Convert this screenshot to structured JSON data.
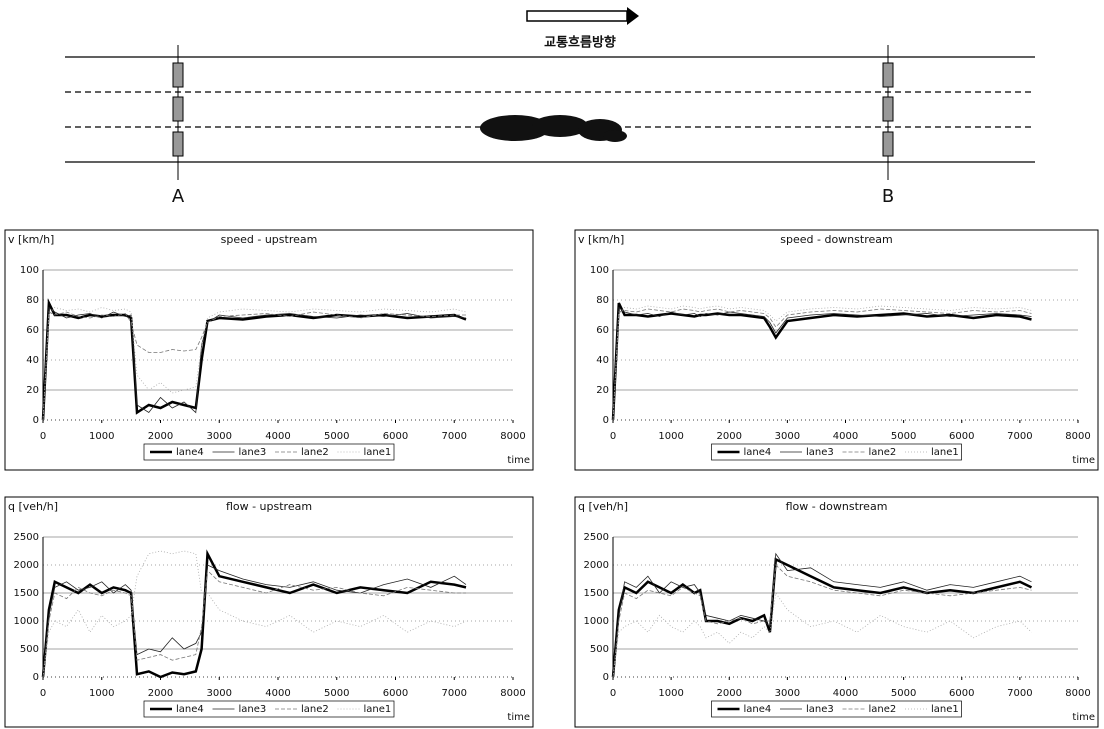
{
  "diagram": {
    "direction": "교통흐름방향",
    "detector_a": "A",
    "detector_b": "B"
  },
  "chart_data": [
    {
      "type": "line",
      "title": "speed - upstream",
      "ylabel": "v [km/h]",
      "xlabel": "time",
      "grid": true,
      "legend": "bottom",
      "x": [
        0,
        100,
        200,
        400,
        600,
        800,
        1000,
        1200,
        1400,
        1500,
        1600,
        1800,
        2000,
        2200,
        2400,
        2600,
        2700,
        2800,
        3000,
        3400,
        3800,
        4200,
        4600,
        5000,
        5400,
        5800,
        6200,
        6600,
        7000,
        7200
      ],
      "xlim": [
        0,
        8000
      ],
      "xticks": [
        0,
        1000,
        2000,
        3000,
        4000,
        5000,
        6000,
        7000,
        8000
      ],
      "ylim": [
        0,
        100
      ],
      "yticks": [
        0,
        20,
        40,
        60,
        80,
        100
      ],
      "series": [
        {
          "name": "lane4",
          "color": "#000000",
          "linewidth": 2.5,
          "values": [
            0,
            78,
            70,
            70,
            68,
            70,
            69,
            70,
            70,
            68,
            5,
            10,
            8,
            12,
            10,
            8,
            40,
            66,
            68,
            67,
            69,
            70,
            68,
            70,
            69,
            70,
            68,
            69,
            70,
            67
          ]
        },
        {
          "name": "lane3",
          "color": "#222222",
          "linewidth": 0.8,
          "values": [
            0,
            75,
            72,
            68,
            70,
            71,
            68,
            72,
            69,
            70,
            10,
            5,
            15,
            8,
            12,
            5,
            50,
            65,
            70,
            68,
            70,
            71,
            69,
            68,
            70,
            69,
            71,
            68,
            69,
            68
          ]
        },
        {
          "name": "lane2",
          "color": "#777777",
          "linewidth": 0.8,
          "values": [
            0,
            72,
            70,
            72,
            69,
            68,
            70,
            69,
            71,
            65,
            50,
            45,
            45,
            47,
            46,
            47,
            55,
            65,
            69,
            70,
            71,
            69,
            72,
            70,
            68,
            71,
            70,
            69,
            70,
            70
          ]
        },
        {
          "name": "lane1",
          "color": "#aaaaaa",
          "linewidth": 0.8,
          "values": [
            0,
            70,
            75,
            73,
            74,
            72,
            75,
            73,
            74,
            72,
            30,
            20,
            25,
            18,
            20,
            22,
            50,
            68,
            72,
            74,
            73,
            72,
            74,
            73,
            72,
            74,
            73,
            72,
            74,
            72
          ]
        }
      ]
    },
    {
      "type": "line",
      "title": "speed - downstream",
      "ylabel": "v [km/h]",
      "xlabel": "time",
      "grid": true,
      "legend": "bottom",
      "x": [
        0,
        100,
        200,
        400,
        600,
        800,
        1000,
        1200,
        1400,
        1500,
        1600,
        1800,
        2000,
        2200,
        2400,
        2600,
        2700,
        2800,
        3000,
        3400,
        3800,
        4200,
        4600,
        5000,
        5400,
        5800,
        6200,
        6600,
        7000,
        7200
      ],
      "xlim": [
        0,
        8000
      ],
      "xticks": [
        0,
        1000,
        2000,
        3000,
        4000,
        5000,
        6000,
        7000,
        8000
      ],
      "ylim": [
        0,
        100
      ],
      "yticks": [
        0,
        20,
        40,
        60,
        80,
        100
      ],
      "series": [
        {
          "name": "lane4",
          "color": "#000000",
          "linewidth": 2.5,
          "values": [
            0,
            78,
            70,
            70,
            69,
            70,
            71,
            70,
            69,
            70,
            70,
            71,
            70,
            70,
            69,
            68,
            62,
            55,
            66,
            68,
            70,
            69,
            70,
            71,
            69,
            70,
            68,
            70,
            69,
            67
          ]
        },
        {
          "name": "lane3",
          "color": "#222222",
          "linewidth": 0.8,
          "values": [
            0,
            75,
            72,
            70,
            71,
            69,
            72,
            70,
            71,
            69,
            71,
            70,
            72,
            71,
            70,
            69,
            65,
            58,
            68,
            70,
            71,
            70,
            69,
            70,
            71,
            69,
            70,
            71,
            70,
            69
          ]
        },
        {
          "name": "lane2",
          "color": "#777777",
          "linewidth": 0.8,
          "values": [
            0,
            72,
            73,
            72,
            74,
            73,
            72,
            74,
            73,
            72,
            73,
            74,
            72,
            73,
            72,
            71,
            68,
            62,
            70,
            72,
            73,
            72,
            74,
            73,
            72,
            71,
            73,
            72,
            73,
            71
          ]
        },
        {
          "name": "lane1",
          "color": "#aaaaaa",
          "linewidth": 0.8,
          "values": [
            0,
            70,
            75,
            74,
            76,
            75,
            74,
            76,
            75,
            74,
            75,
            76,
            74,
            75,
            74,
            73,
            70,
            66,
            72,
            74,
            75,
            74,
            76,
            75,
            74,
            73,
            75,
            74,
            75,
            73
          ]
        }
      ]
    },
    {
      "type": "line",
      "title": "flow - upstream",
      "ylabel": "q [veh/h]",
      "xlabel": "time",
      "grid": true,
      "legend": "bottom",
      "x": [
        0,
        100,
        200,
        400,
        600,
        800,
        1000,
        1200,
        1400,
        1500,
        1600,
        1800,
        2000,
        2200,
        2400,
        2600,
        2700,
        2800,
        3000,
        3400,
        3800,
        4200,
        4600,
        5000,
        5400,
        5800,
        6200,
        6600,
        7000,
        7200
      ],
      "xlim": [
        0,
        8000
      ],
      "xticks": [
        0,
        1000,
        2000,
        3000,
        4000,
        5000,
        6000,
        7000,
        8000
      ],
      "ylim": [
        0,
        2500
      ],
      "yticks": [
        0,
        500,
        1000,
        1500,
        2000,
        2500
      ],
      "series": [
        {
          "name": "lane4",
          "color": "#000000",
          "linewidth": 2.5,
          "values": [
            0,
            1200,
            1700,
            1600,
            1500,
            1650,
            1500,
            1600,
            1550,
            1500,
            50,
            100,
            0,
            80,
            50,
            100,
            500,
            2200,
            1800,
            1700,
            1600,
            1500,
            1650,
            1500,
            1600,
            1550,
            1500,
            1700,
            1650,
            1600
          ]
        },
        {
          "name": "lane3",
          "color": "#222222",
          "linewidth": 0.8,
          "values": [
            0,
            1100,
            1600,
            1700,
            1550,
            1600,
            1700,
            1500,
            1650,
            1550,
            400,
            500,
            450,
            700,
            500,
            600,
            800,
            2000,
            1900,
            1750,
            1650,
            1600,
            1700,
            1550,
            1500,
            1650,
            1750,
            1600,
            1800,
            1650
          ]
        },
        {
          "name": "lane2",
          "color": "#777777",
          "linewidth": 0.8,
          "values": [
            0,
            1000,
            1500,
            1400,
            1600,
            1500,
            1450,
            1550,
            1500,
            1450,
            300,
            350,
            400,
            300,
            350,
            400,
            900,
            1900,
            1700,
            1600,
            1500,
            1650,
            1550,
            1600,
            1500,
            1450,
            1600,
            1550,
            1500,
            1500
          ]
        },
        {
          "name": "lane1",
          "color": "#aaaaaa",
          "linewidth": 0.8,
          "values": [
            0,
            800,
            1000,
            900,
            1200,
            800,
            1100,
            900,
            1000,
            1100,
            1800,
            2200,
            2250,
            2200,
            2250,
            2200,
            1500,
            1500,
            1200,
            1000,
            900,
            1100,
            800,
            1000,
            900,
            1100,
            800,
            1000,
            900,
            1000
          ]
        }
      ]
    },
    {
      "type": "line",
      "title": "flow - downstream",
      "ylabel": "q [veh/h]",
      "xlabel": "time",
      "grid": true,
      "legend": "bottom",
      "x": [
        0,
        100,
        200,
        400,
        600,
        800,
        1000,
        1200,
        1400,
        1500,
        1600,
        1800,
        2000,
        2200,
        2400,
        2600,
        2700,
        2800,
        3000,
        3400,
        3800,
        4200,
        4600,
        5000,
        5400,
        5800,
        6200,
        6600,
        7000,
        7200
      ],
      "xlim": [
        0,
        8000
      ],
      "xticks": [
        0,
        1000,
        2000,
        3000,
        4000,
        5000,
        6000,
        7000,
        8000
      ],
      "ylim": [
        0,
        2500
      ],
      "yticks": [
        0,
        500,
        1000,
        1500,
        2000,
        2500
      ],
      "series": [
        {
          "name": "lane4",
          "color": "#000000",
          "linewidth": 2.5,
          "values": [
            0,
            1200,
            1600,
            1500,
            1700,
            1600,
            1500,
            1650,
            1500,
            1550,
            1000,
            1000,
            950,
            1050,
            1000,
            1100,
            800,
            2100,
            2000,
            1800,
            1600,
            1550,
            1500,
            1600,
            1500,
            1550,
            1500,
            1600,
            1700,
            1600
          ]
        },
        {
          "name": "lane3",
          "color": "#222222",
          "linewidth": 0.8,
          "values": [
            0,
            1100,
            1700,
            1600,
            1800,
            1500,
            1700,
            1600,
            1650,
            1500,
            1100,
            1050,
            1000,
            1100,
            1050,
            1000,
            900,
            2200,
            1900,
            1950,
            1700,
            1650,
            1600,
            1700,
            1550,
            1650,
            1600,
            1700,
            1800,
            1700
          ]
        },
        {
          "name": "lane2",
          "color": "#777777",
          "linewidth": 0.8,
          "values": [
            0,
            1000,
            1500,
            1400,
            1550,
            1500,
            1450,
            1600,
            1500,
            1450,
            1000,
            950,
            1000,
            1050,
            950,
            1000,
            1000,
            2000,
            1800,
            1700,
            1550,
            1500,
            1450,
            1550,
            1500,
            1450,
            1500,
            1550,
            1600,
            1550
          ]
        },
        {
          "name": "lane1",
          "color": "#aaaaaa",
          "linewidth": 0.8,
          "values": [
            0,
            800,
            900,
            1000,
            800,
            1100,
            900,
            800,
            1000,
            900,
            700,
            800,
            600,
            800,
            700,
            900,
            800,
            1500,
            1200,
            900,
            1000,
            800,
            1100,
            900,
            800,
            1000,
            700,
            900,
            1000,
            800
          ]
        }
      ]
    }
  ]
}
